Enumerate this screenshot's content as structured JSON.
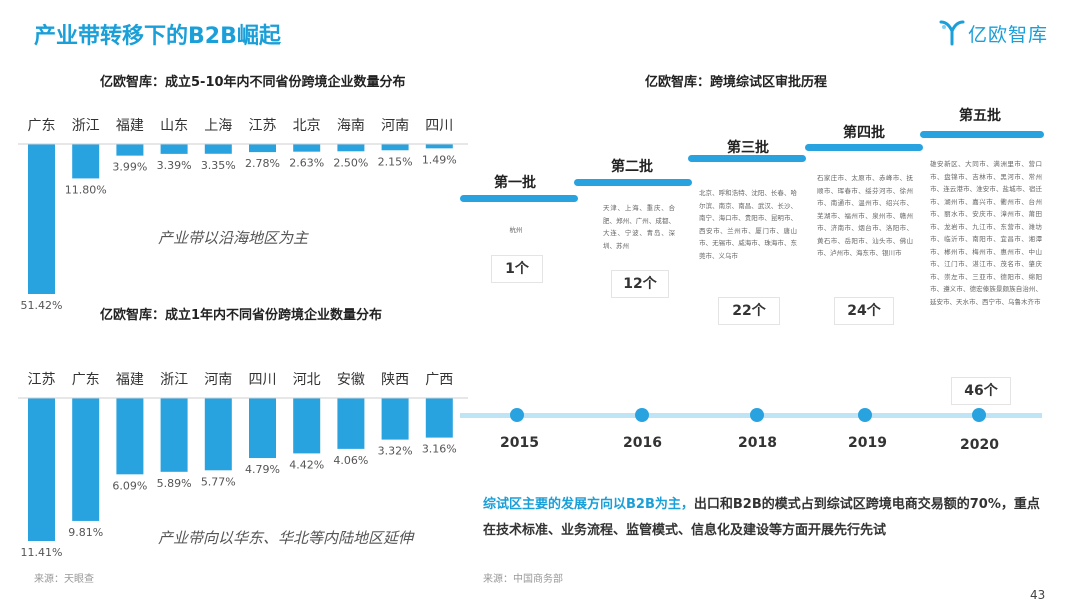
{
  "page": {
    "title": "产业带转移下的B2B崛起",
    "logo_text": "亿欧智库",
    "page_number": "43"
  },
  "chart_data": [
    {
      "type": "bar",
      "title": "亿欧智库：成立5-10年内不同省份跨境企业数量分布",
      "categories": [
        "广东",
        "浙江",
        "福建",
        "山东",
        "上海",
        "江苏",
        "北京",
        "海南",
        "河南",
        "四川"
      ],
      "values": [
        51.42,
        11.8,
        3.99,
        3.39,
        3.35,
        2.78,
        2.63,
        2.5,
        2.15,
        1.49
      ],
      "value_labels": [
        "51.42%",
        "11.80%",
        "3.99%",
        "3.39%",
        "3.35%",
        "2.78%",
        "2.63%",
        "2.50%",
        "2.15%",
        "1.49%"
      ],
      "orientation": "downward",
      "color": "#29a3e0",
      "note": "产业带以沿海地区为主"
    },
    {
      "type": "bar",
      "title": "亿欧智库：成立1年内不同省份跨境企业数量分布",
      "categories": [
        "江苏",
        "广东",
        "福建",
        "浙江",
        "河南",
        "四川",
        "河北",
        "安徽",
        "陕西",
        "广西"
      ],
      "values": [
        11.41,
        9.81,
        6.09,
        5.89,
        5.77,
        4.79,
        4.42,
        4.06,
        3.32,
        3.16
      ],
      "value_labels": [
        "11.41%",
        "9.81%",
        "6.09%",
        "5.89%",
        "5.77%",
        "4.79%",
        "4.42%",
        "4.06%",
        "3.32%",
        "3.16%"
      ],
      "orientation": "downward",
      "color": "#29a3e0",
      "note": "产业带向以华东、华北等内陆地区延伸"
    }
  ],
  "left_source": "来源：天眼查",
  "timeline": {
    "title": "亿欧智库：跨境综试区审批历程",
    "batches": [
      {
        "name": "第一批",
        "year": "2015",
        "count": "1个",
        "cities": "杭州"
      },
      {
        "name": "第二批",
        "year": "2016",
        "count": "12个",
        "cities": "天津、上海、重庆、合肥、郑州、广州、成都、大连、宁波、青岛、深圳、苏州"
      },
      {
        "name": "第三批",
        "year": "2018",
        "count": "22个",
        "cities": "北京、呼和浩特、沈阳、长春、哈尔滨、南京、南昌、武汉、长沙、南宁、海口市、贵阳市、昆明市、西安市、兰州市、厦门市、唐山市、无锡市、威海市、珠海市、东莞市、义乌市"
      },
      {
        "name": "第四批",
        "year": "2019",
        "count": "24个",
        "cities": "石家庄市、太原市、赤峰市、抚顺市、珲春市、绥芬河市、徐州市、南通市、温州市、绍兴市、芜湖市、福州市、泉州市、赣州市、济南市、烟台市、洛阳市、黄石市、岳阳市、汕头市、佛山市、泸州市、海东市、银川市"
      },
      {
        "name": "第五批",
        "year": "2020",
        "count": "46个",
        "cities": "雄安新区、大同市、满洲里市、营口市、盘锦市、吉林市、黑河市、常州市、连云港市、淮安市、盐城市、宿迁市、湖州市、嘉兴市、衢州市、台州市、丽水市、安庆市、漳州市、莆田市、龙岩市、九江市、东营市、潍坊市、临沂市、南阳市、宜昌市、湘潭市、郴州市、梅州市、惠州市、中山市、江门市、湛江市、茂名市、肇庆市、崇左市、三亚市、德阳市、绵阳市、遵义市、德宏傣族景颇族自治州、延安市、天水市、西宁市、乌鲁木齐市"
      }
    ],
    "conclusion_highlight": "综试区主要的发展方向以B2B为主，",
    "conclusion_rest": "出口和B2B的模式占到综试区跨境电商交易额的70%，重点在技术标准、业务流程、监管模式、信息化及建设等方面开展先行先试",
    "source": "来源：中国商务部"
  }
}
